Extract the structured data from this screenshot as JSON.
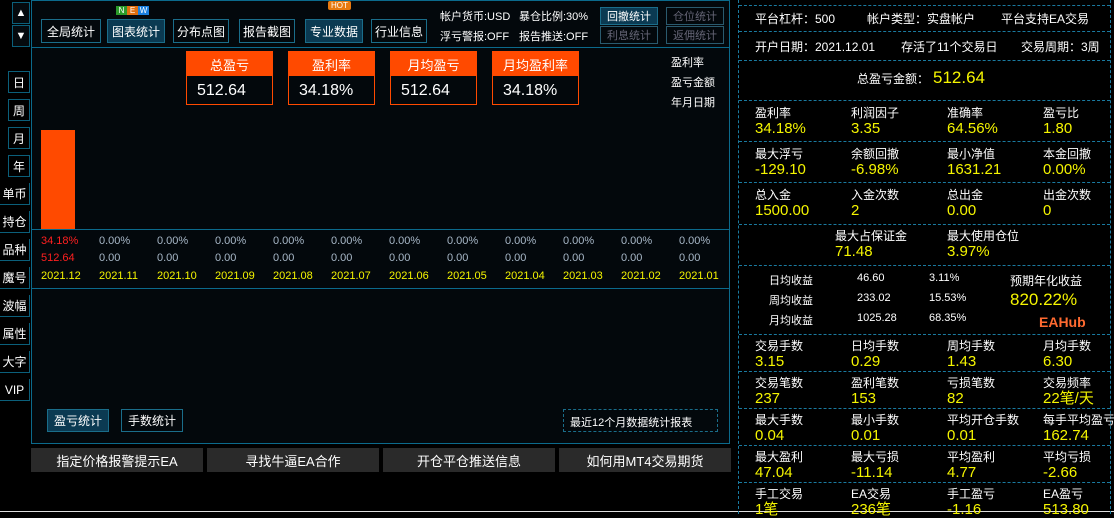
{
  "nav": {
    "up": "▲",
    "down": "▼",
    "side": [
      "日",
      "周",
      "月",
      "年",
      "单币",
      "持仓",
      "品种",
      "魔号",
      "波幅",
      "属性",
      "大字",
      "VIP"
    ]
  },
  "toolbar": {
    "tabs": [
      "全局统计",
      "图表统计",
      "分布点图",
      "报告截图",
      "专业数据",
      "行业信息"
    ],
    "new_badge": [
      "N",
      "E",
      "W"
    ],
    "hot_badge": "HOT",
    "info": {
      "currency": "帐户货币:USD",
      "exposure": "暴仓比例:30%",
      "float_alert": "浮亏警报:OFF",
      "report_push": "报告推送:OFF"
    },
    "buttons": [
      "回撤统计",
      "仓位统计",
      "利息统计",
      "返佣统计"
    ]
  },
  "cards": [
    {
      "label": "总盈亏",
      "value": "512.64"
    },
    {
      "label": "盈利率",
      "value": "34.18%"
    },
    {
      "label": "月均盈亏",
      "value": "512.64"
    },
    {
      "label": "月均盈利率",
      "value": "34.18%"
    }
  ],
  "legend": [
    "盈利率",
    "盈亏金额",
    "年月日期"
  ],
  "colors": {
    "bar": "#ff4a00",
    "positive": "#ff2020",
    "neutral": "#a8b8c8",
    "date": "#f5f500",
    "accent": "#0b6a8c"
  },
  "chart_data": {
    "type": "bar",
    "categories": [
      "2021.12",
      "2021.11",
      "2021.10",
      "2021.09",
      "2021.08",
      "2021.07",
      "2021.06",
      "2021.05",
      "2021.04",
      "2021.03",
      "2021.02",
      "2021.01"
    ],
    "rates": [
      "34.18%",
      "0.00%",
      "0.00%",
      "0.00%",
      "0.00%",
      "0.00%",
      "0.00%",
      "0.00%",
      "0.00%",
      "0.00%",
      "0.00%",
      "0.00%"
    ],
    "values": [
      512.64,
      0,
      0,
      0,
      0,
      0,
      0,
      0,
      0,
      0,
      0,
      0
    ],
    "value_labels": [
      "512.64",
      "0.00",
      "0.00",
      "0.00",
      "0.00",
      "0.00",
      "0.00",
      "0.00",
      "0.00",
      "0.00",
      "0.00",
      "0.00"
    ]
  },
  "bottom_tabs": [
    "盈亏统计",
    "手数统计"
  ],
  "report_note": "最近12个月数据统计报表",
  "links": [
    "指定价格报警提示EA",
    "寻找牛逼EA合作",
    "开仓平仓推送信息",
    "如何用MT4交易期货"
  ],
  "right": {
    "row1": [
      "平台杠杆：500",
      "帐户类型：实盘帐户",
      "平台支持EA交易"
    ],
    "row2": [
      "开户日期：2021.12.01",
      "存活了11个交易日",
      "交易周期：3周"
    ],
    "total_label": "总盈亏金额：",
    "total_value": "512.64",
    "grid1": [
      [
        "盈利率",
        "34.18%"
      ],
      [
        "利润因子",
        "3.35"
      ],
      [
        "准确率",
        "64.56%"
      ],
      [
        "盈亏比",
        "1.80"
      ],
      [
        "最大浮亏",
        "-129.10"
      ],
      [
        "余额回撤",
        "-6.98%"
      ],
      [
        "最小净值",
        "1631.21"
      ],
      [
        "本金回撤",
        "0.00%"
      ],
      [
        "总入金",
        "1500.00"
      ],
      [
        "入金次数",
        "2"
      ],
      [
        "总出金",
        "0.00"
      ],
      [
        "出金次数",
        "0"
      ]
    ],
    "margin": [
      [
        "最大占保证金",
        "71.48"
      ],
      [
        "最大使用仓位",
        "3.97%"
      ]
    ],
    "avg": [
      [
        "日均收益",
        "46.60",
        "3.11%"
      ],
      [
        "周均收益",
        "233.02",
        "15.53%"
      ],
      [
        "月均收益",
        "1025.28",
        "68.35%"
      ]
    ],
    "annual_label": "预期年化收益",
    "annual_value": "820.22%",
    "grid2": [
      [
        "交易手数",
        "3.15"
      ],
      [
        "日均手数",
        "0.29"
      ],
      [
        "周均手数",
        "1.43"
      ],
      [
        "月均手数",
        "6.30"
      ],
      [
        "交易笔数",
        "237"
      ],
      [
        "盈利笔数",
        "153"
      ],
      [
        "亏损笔数",
        "82"
      ],
      [
        "交易频率",
        "22笔/天"
      ],
      [
        "最大手数",
        "0.04"
      ],
      [
        "最小手数",
        "0.01"
      ],
      [
        "平均开仓手数",
        "0.01"
      ],
      [
        "每手平均盈亏",
        "162.74"
      ],
      [
        "最大盈利",
        "47.04"
      ],
      [
        "最大亏损",
        "-11.14"
      ],
      [
        "平均盈利",
        "4.77"
      ],
      [
        "平均亏损",
        "-2.66"
      ],
      [
        "手工交易",
        "1笔"
      ],
      [
        "EA交易",
        "236笔"
      ],
      [
        "手工盈亏",
        "-1.16"
      ],
      [
        "EA盈亏",
        "513.80"
      ]
    ],
    "watermark": "EAHub"
  }
}
